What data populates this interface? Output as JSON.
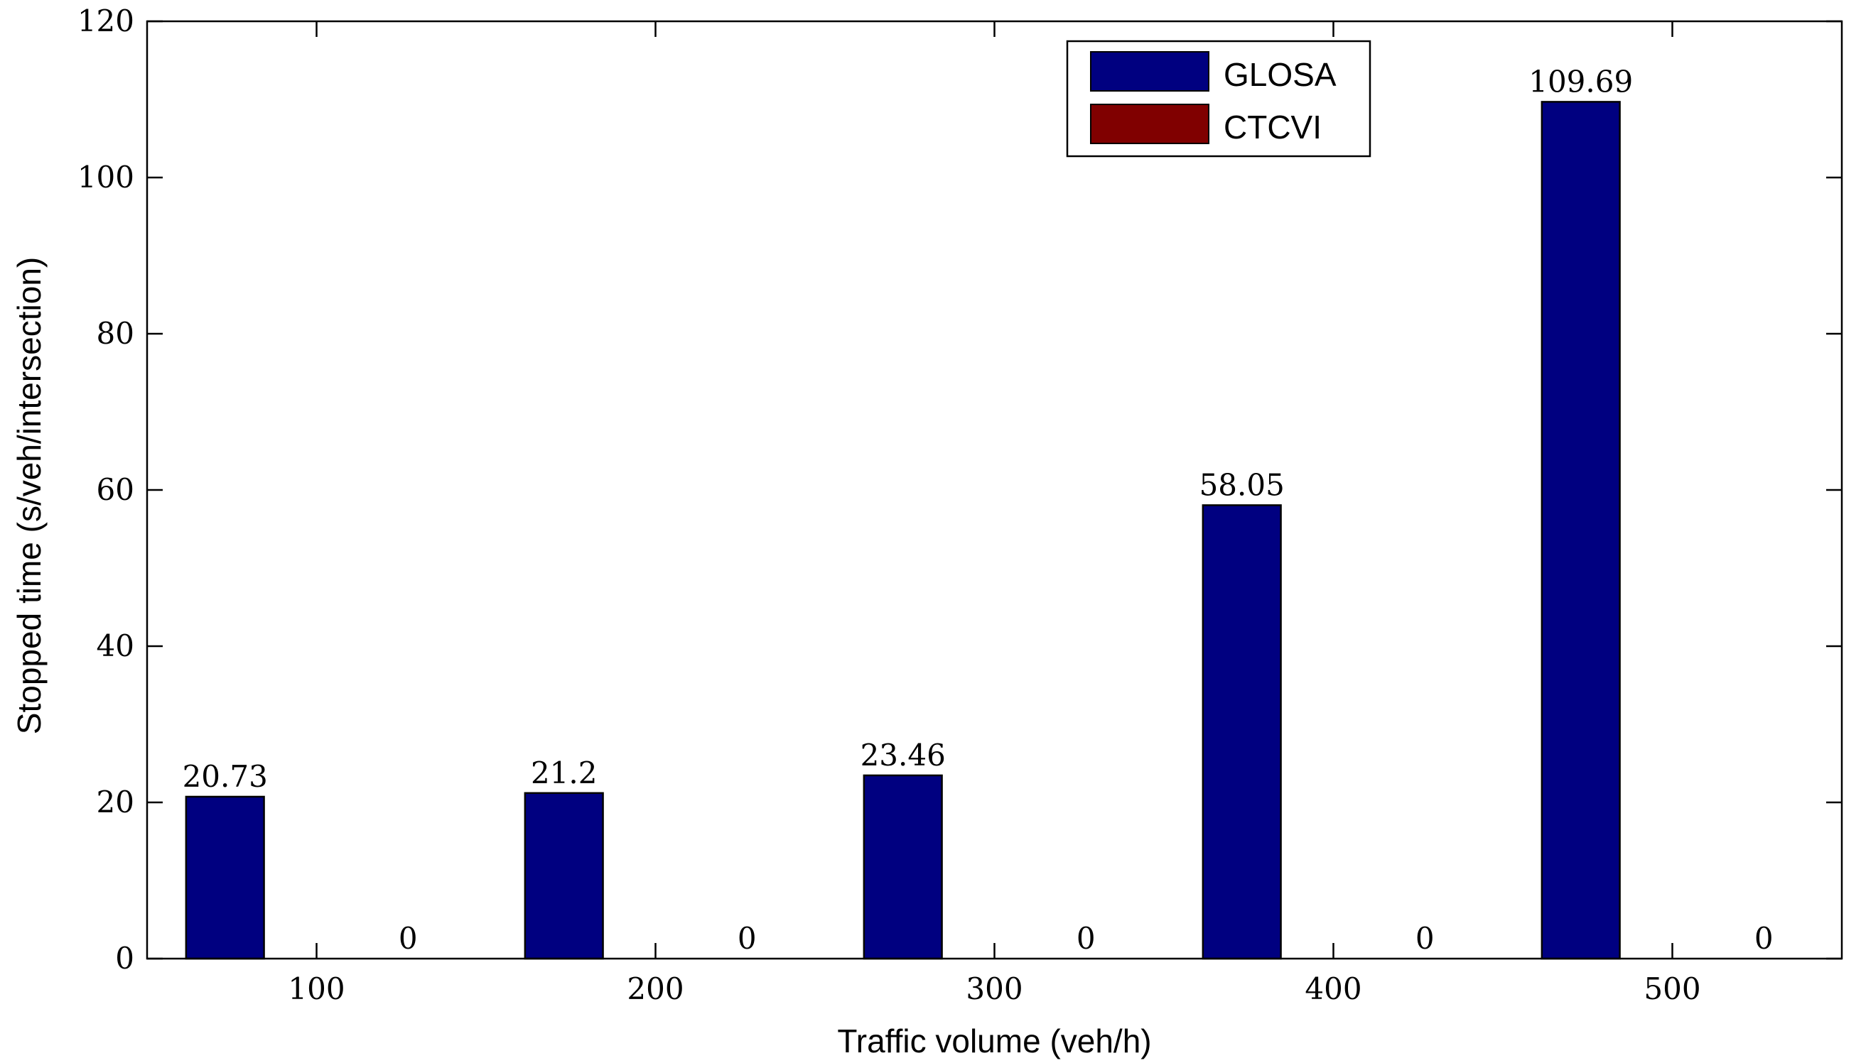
{
  "chart_data": {
    "type": "bar",
    "title": "",
    "xlabel": "Traffic volume (veh/h)",
    "ylabel": "Stopped time (s/veh/intersection)",
    "categories": [
      "100",
      "200",
      "300",
      "400",
      "500"
    ],
    "ylim": [
      0,
      120
    ],
    "yticks": [
      0,
      20,
      40,
      60,
      80,
      100,
      120
    ],
    "series": [
      {
        "name": "GLOSA",
        "color": "#000080",
        "values": [
          20.73,
          21.2,
          23.46,
          58.05,
          109.69
        ],
        "labels": [
          "20.73",
          "21.2",
          "23.46",
          "58.05",
          "109.69"
        ]
      },
      {
        "name": "CTCVI",
        "color": "#800000",
        "values": [
          0,
          0,
          0,
          0,
          0
        ],
        "labels": [
          "0",
          "0",
          "0",
          "0",
          "0"
        ]
      }
    ],
    "legend_position": "top-right",
    "grid": false
  }
}
